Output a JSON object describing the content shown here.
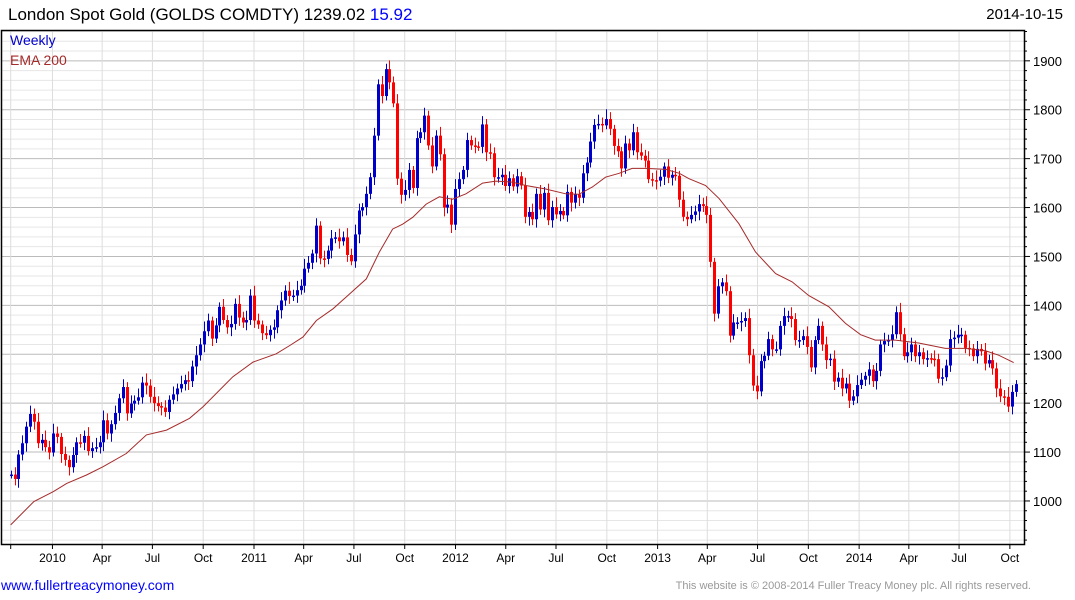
{
  "header": {
    "title": "London Spot Gold (GOLDS COMDTY) 1239.02",
    "change": "15.92",
    "date": "2014-10-15"
  },
  "legend": {
    "period": "Weekly",
    "indicator": "EMA 200"
  },
  "footer": {
    "link": "www.fullertreacymoney.com",
    "copyright": "This website is © 2008-2014 Fuller Treacy Money plc. All rights reserved."
  },
  "colors": {
    "up": "#0000cc",
    "down": "#ff0000",
    "ema": "#a52a2a",
    "grid_major": "#bbbbbb",
    "grid_minor": "#e6e6e6"
  },
  "chart_data": {
    "type": "candlestick",
    "title": "London Spot Gold (GOLDS COMDTY)",
    "frequency": "Weekly",
    "first_week": "2009-10-21",
    "ylim": [
      912,
      1961
    ],
    "yticks": [
      1000,
      1100,
      1200,
      1300,
      1400,
      1500,
      1600,
      1700,
      1800,
      1900
    ],
    "grid": true,
    "weekly_close": [
      1054,
      1045,
      1095,
      1118,
      1152,
      1178,
      1162,
      1118,
      1125,
      1110,
      1099,
      1138,
      1131,
      1096,
      1084,
      1069,
      1094,
      1120,
      1119,
      1133,
      1102,
      1108,
      1110,
      1120,
      1165,
      1138,
      1157,
      1180,
      1210,
      1233,
      1179,
      1199,
      1205,
      1212,
      1242,
      1236,
      1213,
      1200,
      1194,
      1191,
      1182,
      1207,
      1218,
      1230,
      1239,
      1247,
      1245,
      1275,
      1298,
      1320,
      1347,
      1369,
      1332,
      1359,
      1397,
      1370,
      1355,
      1362,
      1403,
      1375,
      1365,
      1370,
      1420,
      1369,
      1361,
      1343,
      1339,
      1350,
      1355,
      1390,
      1410,
      1430,
      1419,
      1420,
      1431,
      1440,
      1475,
      1487,
      1506,
      1563,
      1496,
      1495,
      1512,
      1537,
      1539,
      1531,
      1539,
      1503,
      1490,
      1545,
      1594,
      1601,
      1628,
      1662,
      1747,
      1852,
      1828,
      1883,
      1856,
      1813,
      1659,
      1626,
      1636,
      1677,
      1640,
      1742,
      1754,
      1788,
      1727,
      1684,
      1747,
      1709,
      1600,
      1606,
      1565,
      1638,
      1658,
      1677,
      1738,
      1727,
      1725,
      1724,
      1770,
      1713,
      1711,
      1662,
      1662,
      1667,
      1644,
      1660,
      1643,
      1664,
      1645,
      1581,
      1591,
      1576,
      1628,
      1596,
      1630,
      1574,
      1601,
      1586,
      1593,
      1584,
      1632,
      1610,
      1627,
      1620,
      1670,
      1692,
      1735,
      1769,
      1771,
      1768,
      1781,
      1761,
      1726,
      1715,
      1680,
      1731,
      1717,
      1754,
      1713,
      1706,
      1696,
      1658,
      1656,
      1655,
      1663,
      1684,
      1661,
      1667,
      1665,
      1616,
      1581,
      1576,
      1585,
      1592,
      1607,
      1603,
      1585,
      1489,
      1383,
      1439,
      1447,
      1429,
      1338,
      1365,
      1365,
      1368,
      1374,
      1298,
      1236,
      1224,
      1286,
      1297,
      1331,
      1310,
      1310,
      1358,
      1378,
      1378,
      1372,
      1329,
      1329,
      1337,
      1315,
      1273,
      1329,
      1358,
      1320,
      1288,
      1291,
      1244,
      1252,
      1230,
      1240,
      1205,
      1214,
      1237,
      1248,
      1256,
      1269,
      1245,
      1266,
      1320,
      1327,
      1329,
      1341,
      1386,
      1341,
      1296,
      1304,
      1320,
      1296,
      1304,
      1290,
      1292,
      1291,
      1290,
      1250,
      1253,
      1277,
      1331,
      1334,
      1340,
      1340,
      1313,
      1312,
      1296,
      1311,
      1306,
      1281,
      1288,
      1271,
      1230,
      1214,
      1213,
      1193,
      1223,
      1239
    ],
    "ema200": [
      [
        0,
        951
      ],
      [
        6,
        999
      ],
      [
        11,
        1019
      ],
      [
        14.5,
        1036
      ],
      [
        19.6,
        1053
      ],
      [
        23.9,
        1070
      ],
      [
        29.9,
        1097
      ],
      [
        35.1,
        1135
      ],
      [
        40.3,
        1145
      ],
      [
        46.3,
        1169
      ],
      [
        49.8,
        1193
      ],
      [
        57.5,
        1254
      ],
      [
        62.7,
        1284
      ],
      [
        68.7,
        1301
      ],
      [
        72.2,
        1318
      ],
      [
        75.6,
        1335
      ],
      [
        79.1,
        1369
      ],
      [
        83.4,
        1393
      ],
      [
        86.8,
        1417
      ],
      [
        92,
        1454
      ],
      [
        95.4,
        1509
      ],
      [
        98.8,
        1556
      ],
      [
        101.4,
        1566
      ],
      [
        104,
        1580
      ],
      [
        107.5,
        1607
      ],
      [
        110.9,
        1622
      ],
      [
        114.3,
        1617
      ],
      [
        117.8,
        1628
      ],
      [
        122.1,
        1650
      ],
      [
        125.5,
        1654
      ],
      [
        129.8,
        1652
      ],
      [
        133.3,
        1645
      ],
      [
        138.4,
        1638
      ],
      [
        143.6,
        1628
      ],
      [
        147,
        1627
      ],
      [
        150.5,
        1642
      ],
      [
        153.9,
        1662
      ],
      [
        157.4,
        1670
      ],
      [
        160.8,
        1680
      ],
      [
        164.3,
        1680
      ],
      [
        169.5,
        1678
      ],
      [
        173,
        1670
      ],
      [
        175.5,
        1659
      ],
      [
        179.8,
        1645
      ],
      [
        183.3,
        1618
      ],
      [
        188.4,
        1567
      ],
      [
        192.7,
        1509
      ],
      [
        197.9,
        1465
      ],
      [
        202.2,
        1448
      ],
      [
        206.5,
        1420
      ],
      [
        211.7,
        1397
      ],
      [
        216,
        1363
      ],
      [
        219.9,
        1340
      ],
      [
        223.7,
        1329
      ],
      [
        228.9,
        1329
      ],
      [
        234.9,
        1323
      ],
      [
        241.8,
        1312
      ],
      [
        247,
        1312
      ],
      [
        252.2,
        1307
      ],
      [
        255.6,
        1298
      ],
      [
        259.5,
        1283
      ]
    ],
    "xticks": [
      {
        "label": "2010",
        "date": "2010-01-01"
      },
      {
        "label": "Apr",
        "date": "2010-04-01"
      },
      {
        "label": "Jul",
        "date": "2010-07-01"
      },
      {
        "label": "Oct",
        "date": "2010-10-01"
      },
      {
        "label": "2011",
        "date": "2011-01-01"
      },
      {
        "label": "Apr",
        "date": "2011-04-01"
      },
      {
        "label": "Jul",
        "date": "2011-07-01"
      },
      {
        "label": "Oct",
        "date": "2011-10-01"
      },
      {
        "label": "2012",
        "date": "2012-01-01"
      },
      {
        "label": "Apr",
        "date": "2012-04-01"
      },
      {
        "label": "Jul",
        "date": "2012-07-01"
      },
      {
        "label": "Oct",
        "date": "2012-10-01"
      },
      {
        "label": "2013",
        "date": "2013-01-01"
      },
      {
        "label": "Apr",
        "date": "2013-04-01"
      },
      {
        "label": "Jul",
        "date": "2013-07-01"
      },
      {
        "label": "Oct",
        "date": "2013-10-01"
      },
      {
        "label": "2014",
        "date": "2014-01-01"
      },
      {
        "label": "Apr",
        "date": "2014-04-01"
      },
      {
        "label": "Jul",
        "date": "2014-07-01"
      },
      {
        "label": "Oct",
        "date": "2014-10-01"
      }
    ]
  }
}
